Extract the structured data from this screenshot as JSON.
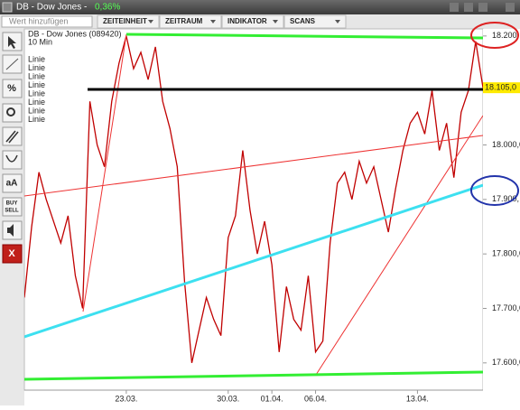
{
  "header": {
    "title": "DB - Dow Jones -",
    "change": "0,36%",
    "search_placeholder": "Wert hinzufügen",
    "tabs": [
      "ZEITEINHEIT",
      "ZEITRAUM",
      "INDIKATOR",
      "SCANS"
    ]
  },
  "toolbar": {
    "buttons": [
      "aA",
      "BUY",
      "SELL",
      "X"
    ]
  },
  "chart_info": {
    "instrument": "DB - Dow Jones (089420)",
    "interval": "10 Min",
    "drawings": [
      "Linie",
      "Linie",
      "Linie",
      "Linie",
      "Linie",
      "Linie",
      "Linie",
      "Linie"
    ]
  },
  "chart_data": {
    "type": "line",
    "categories": [
      null,
      null,
      null,
      null,
      null,
      null,
      null,
      null,
      null,
      null,
      null,
      null,
      null,
      null,
      "23.03.",
      null,
      null,
      null,
      null,
      null,
      null,
      null,
      null,
      null,
      null,
      null,
      null,
      null,
      "30.03.",
      null,
      null,
      null,
      null,
      null,
      "01.04.",
      null,
      null,
      null,
      null,
      null,
      "06.04.",
      null,
      null,
      null,
      null,
      null,
      null,
      null,
      null,
      null,
      null,
      null,
      null,
      null,
      "13.04.",
      null,
      null,
      null,
      null,
      null,
      null,
      null,
      null,
      null
    ],
    "series": [
      {
        "name": "DB - Dow Jones",
        "color": "#c00000",
        "values": [
          17720,
          17850,
          17950,
          17900,
          17860,
          17820,
          17870,
          17760,
          17700,
          18080,
          18000,
          17960,
          18080,
          18150,
          18200,
          18140,
          18170,
          18120,
          18180,
          18080,
          18030,
          17960,
          17750,
          17600,
          17660,
          17720,
          17680,
          17650,
          17830,
          17870,
          17990,
          17880,
          17800,
          17860,
          17780,
          17620,
          17740,
          17680,
          17660,
          17760,
          17620,
          17640,
          17820,
          17930,
          17950,
          17900,
          17970,
          17930,
          17960,
          17900,
          17840,
          17920,
          17990,
          18040,
          18060,
          18020,
          18100,
          17990,
          18040,
          17940,
          18060,
          18100,
          18190,
          18105
        ]
      }
    ],
    "ylim": [
      17550,
      18213
    ],
    "yticks": [
      {
        "value": 18200,
        "label": "18.200"
      },
      {
        "value": 18000,
        "label": "18.000,0"
      },
      {
        "value": 17900,
        "label": "17.900,"
      },
      {
        "value": 17800,
        "label": "17.800,0"
      },
      {
        "value": 17700,
        "label": "17.700,0"
      },
      {
        "value": 17600,
        "label": "17.600,0"
      }
    ],
    "last_price": {
      "value": 18105,
      "label": "18.105,0"
    }
  }
}
